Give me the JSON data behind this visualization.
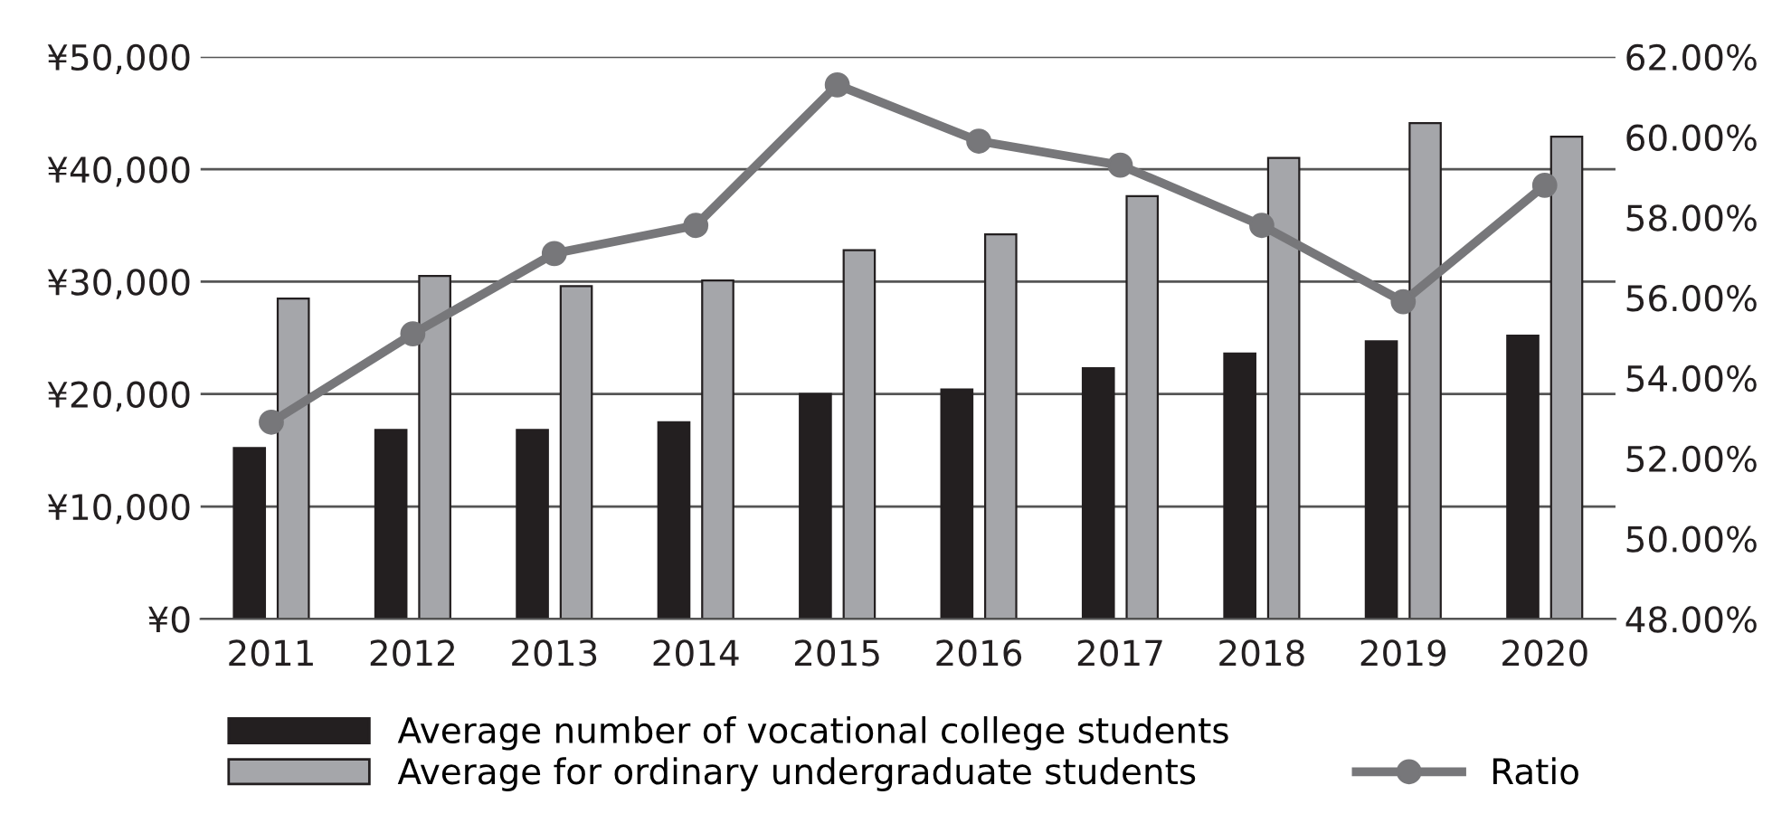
{
  "chart_data": {
    "type": "bar",
    "categories": [
      "2011",
      "2012",
      "2013",
      "2014",
      "2015",
      "2016",
      "2017",
      "2018",
      "2019",
      "2020"
    ],
    "series": [
      {
        "name": "Average number of vocational college students",
        "color": "#231f20",
        "values": [
          15200,
          16800,
          16800,
          17500,
          20000,
          20400,
          22300,
          23600,
          24700,
          25200
        ]
      },
      {
        "name": "Average for ordinary undergraduate students",
        "color": "#a5a6aa",
        "values": [
          28500,
          30500,
          29600,
          30100,
          32800,
          34200,
          37600,
          41000,
          44100,
          42900
        ]
      },
      {
        "name": "Ratio",
        "type": "line",
        "axis": "y2",
        "color": "#77777a",
        "marker": "circle",
        "values": [
          52.9,
          55.1,
          57.1,
          57.8,
          61.3,
          59.9,
          59.3,
          57.8,
          55.9,
          58.8
        ]
      }
    ],
    "ylim": [
      0,
      50000
    ],
    "yticks": [
      {
        "value": 0,
        "label": "¥0"
      },
      {
        "value": 10000,
        "label": "¥10,000"
      },
      {
        "value": 20000,
        "label": "¥20,000"
      },
      {
        "value": 30000,
        "label": "¥30,000"
      },
      {
        "value": 40000,
        "label": "¥40,000"
      },
      {
        "value": 50000,
        "label": "¥50,000"
      }
    ],
    "y2lim": [
      48,
      62
    ],
    "y2ticks": [
      {
        "value": 48,
        "label": "48.00%"
      },
      {
        "value": 50,
        "label": "50.00%"
      },
      {
        "value": 52,
        "label": "52.00%"
      },
      {
        "value": 54,
        "label": "54.00%"
      },
      {
        "value": 56,
        "label": "56.00%"
      },
      {
        "value": 58,
        "label": "58.00%"
      },
      {
        "value": 60,
        "label": "60.00%"
      },
      {
        "value": 62,
        "label": "62.00%"
      }
    ],
    "grid": "y",
    "legend": "bottom"
  }
}
